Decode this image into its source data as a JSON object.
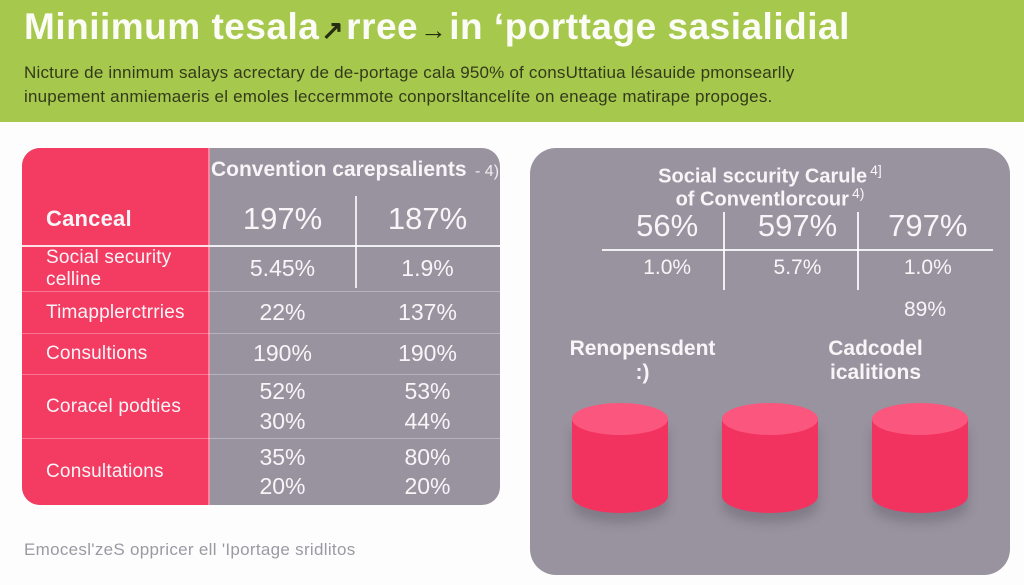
{
  "colors": {
    "header_green": "#a6c84c",
    "accent_pink": "#f43b62",
    "cylinder_pink": "#f2335f",
    "cylinder_top_pink": "#fa567e",
    "panel_gray": "#99939f",
    "title_white": "#fcfcf6",
    "subtitle_dark": "#333a1b",
    "footer_gray": "#9b9aa3"
  },
  "header": {
    "title_part1": "Miniimum tesala",
    "arrow1": "↗",
    "title_part2": "rree",
    "arrow2": "→",
    "title_part3": "in ‘porttage sasialidial",
    "subtitle_line1": "Nicture de innimum salays acrectary de de-portage cala 950% of consUttatiua lésauide pmonsearlly",
    "subtitle_line2": "inupement anmiemaeris el emoles leccermmote conporsltancelíte on eneage matirape propoges."
  },
  "left_table": {
    "header": "Convention carepsalients",
    "header_suffix": "- 4)",
    "rows": [
      {
        "label": "Canceal",
        "col1": "197%",
        "col2": "187%"
      },
      {
        "label": "Social security celline",
        "col1": "5.45%",
        "col2": "1.9%"
      },
      {
        "label": "Timapplerctrries",
        "col1": "22%",
        "col2": "137%"
      },
      {
        "label": "Consultions",
        "col1": "190%",
        "col2": "190%"
      },
      {
        "label": "Coracel podties",
        "col1a": "52%",
        "col1b": "30%",
        "col2a": "53%",
        "col2b": "44%"
      },
      {
        "label": "Consultations",
        "col1a": "35%",
        "col1b": "20%",
        "col2a": "80%",
        "col2b": "20%"
      }
    ]
  },
  "right_panel": {
    "title_line1": "Social sccurity Carule",
    "title_sup1": "4]",
    "title_line2": "of Conventlorcour",
    "title_sup2": "4)",
    "row1": [
      "56%",
      "597%",
      "797%"
    ],
    "row2": [
      "1.0%",
      "5.7%",
      "1.0%"
    ],
    "badge": "89%",
    "label_left": "Renopensdent :)",
    "label_right": "Cadcodel icalitions"
  },
  "footer": {
    "text": "Emocesl'zeS oppricer ell 'Iportage sridlitos"
  },
  "chart_data": [
    {
      "type": "table",
      "title": "Convention carepsalients - 4)",
      "header_row": [
        "Canceal",
        "197%",
        "187%"
      ],
      "rows": [
        [
          "Social security celline",
          "5.45%",
          "1.9%"
        ],
        [
          "Timapplerctrries",
          "22%",
          "137%"
        ],
        [
          "Consultions",
          "190%",
          "190%"
        ],
        [
          "Coracel podties",
          "52% / 30%",
          "53% / 44%"
        ],
        [
          "Consultations",
          "35% / 20%",
          "80% / 20%"
        ]
      ]
    },
    {
      "type": "table",
      "title": "Social sccurity Carule 4] of Conventlorcour 4)",
      "rows": [
        [
          "56%",
          "597%",
          "797%"
        ],
        [
          "1.0%",
          "5.7%",
          "1.0%"
        ],
        [
          "",
          "",
          "89%"
        ]
      ],
      "labels": [
        "Renopensdent :)",
        "Cadcodel icalitions"
      ],
      "bars": {
        "shape": "cylinder",
        "count": 3,
        "color": "#f2335f"
      }
    }
  ]
}
